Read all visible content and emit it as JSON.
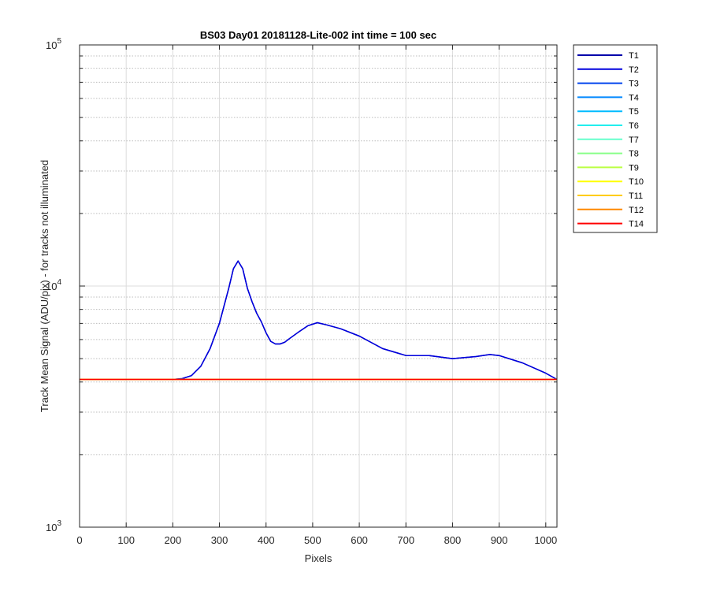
{
  "chart_data": {
    "type": "line",
    "title": "BS03 Day01 20181128-Lite-002 int time = 100 sec",
    "xlabel": "Pixels",
    "ylabel": "Track Mean Signal (ADU/pix) - for tracks not illuminated",
    "xlim": [
      0,
      1024
    ],
    "ylim": [
      1000,
      100000
    ],
    "yscale": "log",
    "grid": true,
    "legend_position": "outside-top-right",
    "x_ticks": [
      0,
      100,
      200,
      300,
      400,
      500,
      600,
      700,
      800,
      900,
      1000
    ],
    "y_ticks": [
      {
        "value": 1000,
        "base": "10",
        "exp": "3"
      },
      {
        "value": 10000,
        "base": "10",
        "exp": "4"
      },
      {
        "value": 100000,
        "base": "10",
        "exp": "5"
      }
    ],
    "series": [
      {
        "name": "T1",
        "color": "#0000aa",
        "x": [
          0,
          200,
          220,
          240,
          260,
          280,
          300,
          320,
          330,
          340,
          350,
          360,
          370,
          380,
          390,
          400,
          410,
          420,
          430,
          440,
          450,
          470,
          490,
          510,
          530,
          560,
          600,
          650,
          700,
          750,
          800,
          850,
          880,
          900,
          950,
          1000,
          1024
        ],
        "y": [
          4100,
          4100,
          4130,
          4250,
          4650,
          5500,
          7000,
          9800,
          11800,
          12700,
          11800,
          9800,
          8600,
          7700,
          7100,
          6400,
          5900,
          5750,
          5750,
          5850,
          6050,
          6450,
          6850,
          7050,
          6900,
          6650,
          6200,
          5500,
          5150,
          5150,
          5000,
          5100,
          5200,
          5150,
          4800,
          4350,
          4100
        ]
      },
      {
        "name": "T2",
        "color": "#0000dd",
        "x": [
          0,
          200,
          220,
          240,
          260,
          280,
          300,
          320,
          330,
          340,
          350,
          360,
          370,
          380,
          390,
          400,
          410,
          420,
          430,
          440,
          450,
          470,
          490,
          510,
          530,
          560,
          600,
          650,
          700,
          750,
          800,
          850,
          880,
          900,
          950,
          1000,
          1024
        ],
        "y": [
          4100,
          4100,
          4130,
          4250,
          4650,
          5500,
          7000,
          9800,
          11800,
          12700,
          11800,
          9800,
          8600,
          7700,
          7100,
          6400,
          5900,
          5750,
          5750,
          5850,
          6050,
          6450,
          6850,
          7050,
          6900,
          6650,
          6200,
          5500,
          5150,
          5150,
          5000,
          5100,
          5200,
          5150,
          4800,
          4350,
          4100
        ]
      },
      {
        "name": "T3",
        "color": "#0044ee",
        "x": [
          0,
          1024
        ],
        "y": [
          4100,
          4100
        ]
      },
      {
        "name": "T4",
        "color": "#0088ff",
        "x": [
          0,
          1024
        ],
        "y": [
          4100,
          4100
        ]
      },
      {
        "name": "T5",
        "color": "#00bbff",
        "x": [
          0,
          1024
        ],
        "y": [
          4100,
          4100
        ]
      },
      {
        "name": "T6",
        "color": "#22eeee",
        "x": [
          0,
          1024
        ],
        "y": [
          4100,
          4100
        ]
      },
      {
        "name": "T7",
        "color": "#66ffcc",
        "x": [
          0,
          1024
        ],
        "y": [
          4100,
          4100
        ]
      },
      {
        "name": "T8",
        "color": "#88ff88",
        "x": [
          0,
          1024
        ],
        "y": [
          4100,
          4100
        ]
      },
      {
        "name": "T9",
        "color": "#bbff44",
        "x": [
          0,
          1024
        ],
        "y": [
          4100,
          4100
        ]
      },
      {
        "name": "T10",
        "color": "#ffff00",
        "x": [
          0,
          1024
        ],
        "y": [
          4100,
          4100
        ]
      },
      {
        "name": "T11",
        "color": "#ffcc00",
        "x": [
          0,
          1024
        ],
        "y": [
          4100,
          4100
        ]
      },
      {
        "name": "T12",
        "color": "#ff8800",
        "x": [
          0,
          1024
        ],
        "y": [
          4100,
          4100
        ]
      },
      {
        "name": "T14",
        "color": "#ff0000",
        "x": [
          0,
          1024
        ],
        "y": [
          4100,
          4100
        ]
      }
    ]
  }
}
